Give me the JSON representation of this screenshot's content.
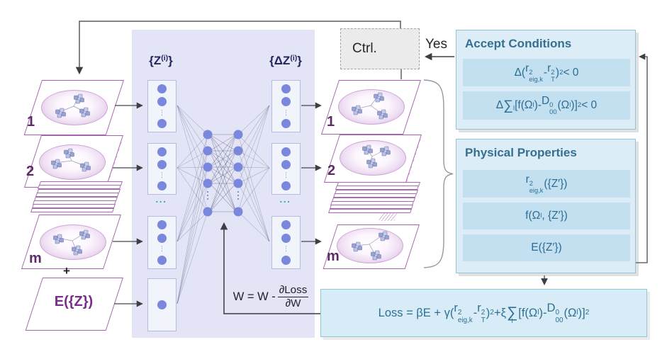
{
  "palette": {
    "accent_purple": "#a564ad",
    "label_purple": "#5e2a68",
    "energy_purple": "#7b2d8b",
    "nn_background": "#e3e5f6",
    "node_blue": "#7987dd",
    "teal_ellipsis": "#2eb3ab",
    "panel_blue_bg": "#dcedf8",
    "panel_inner_blue": "#c3e0f0",
    "panel_border_blue": "#92c3db",
    "panel_text_blue": "#2d6d95",
    "arrow_gray": "#3e3e46"
  },
  "left_stack": {
    "items": [
      {
        "label": "1"
      },
      {
        "label": "2"
      },
      {
        "label": "m"
      }
    ],
    "plus": "+",
    "energy_label": "E({Z})"
  },
  "right_stack": {
    "items": [
      {
        "label": "1"
      },
      {
        "label": "2"
      },
      {
        "label": "m"
      }
    ]
  },
  "network": {
    "input_label_tokens": [
      {
        "t": "{Z"
      },
      {
        "sup": "(i)"
      },
      {
        "t": "}"
      }
    ],
    "output_label_tokens": [
      {
        "t": "{ΔZ"
      },
      {
        "sup": "(i)"
      },
      {
        "t": "}"
      }
    ],
    "input_ellipsis": "...",
    "output_ellipsis": "...",
    "weight_update_tokens": [
      {
        "t": "W = W - "
      },
      {
        "frac": [
          "∂Loss",
          "∂W"
        ]
      }
    ]
  },
  "controller": {
    "label": "Ctrl.",
    "yes_label": "Yes"
  },
  "accept_panel": {
    "title": "Accept Conditions",
    "conditions": [
      [
        {
          "t": "Δ("
        },
        {
          "b": "r",
          "sup": "2",
          "sub": "eig,k"
        },
        {
          "t": "-"
        },
        {
          "b": "r",
          "sup": "2",
          "sub": "T"
        },
        {
          "t": ")"
        },
        {
          "sup": "2"
        },
        {
          "t": " < 0"
        }
      ],
      [
        {
          "t": "Δ"
        },
        {
          "sumside": "l"
        },
        {
          "t": "[f(Ω"
        },
        {
          "sub": "l"
        },
        {
          "t": ")-"
        },
        {
          "b": "D",
          "sup": "0",
          "sub": "00"
        },
        {
          "t": "(Ω"
        },
        {
          "sub": "l"
        },
        {
          "t": ")]"
        },
        {
          "sup": "2"
        },
        {
          "t": "< 0"
        }
      ]
    ]
  },
  "physical_panel": {
    "title": "Physical Properties",
    "properties": [
      [
        {
          "b": "r",
          "sup": "2",
          "sub": "eig,k"
        },
        {
          "t": "({Z′})"
        }
      ],
      [
        {
          "t": "f(Ω"
        },
        {
          "sub": "l"
        },
        {
          "t": ", {Z′})"
        }
      ],
      [
        {
          "t": "E({Z′})"
        }
      ]
    ]
  },
  "loss_box": {
    "tokens": [
      {
        "t": "Loss = βE + γ("
      },
      {
        "b": "r",
        "sup": "2",
        "sub": "eig,k"
      },
      {
        "t": "-"
      },
      {
        "b": "r",
        "sup": "2",
        "sub": "T"
      },
      {
        "t": ")"
      },
      {
        "sup": "2"
      },
      {
        "t": "+ξ"
      },
      {
        "sum": "l"
      },
      {
        "t": "[f(Ω"
      },
      {
        "sub": "l"
      },
      {
        "t": ")-"
      },
      {
        "b": "D",
        "sup": "0",
        "sub": "00"
      },
      {
        "t": "(Ω"
      },
      {
        "sub": "l"
      },
      {
        "t": ")]"
      },
      {
        "sup": "2"
      }
    ]
  }
}
